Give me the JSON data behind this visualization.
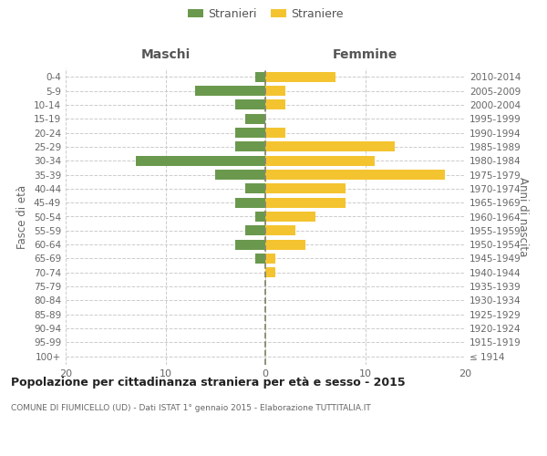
{
  "age_groups": [
    "100+",
    "95-99",
    "90-94",
    "85-89",
    "80-84",
    "75-79",
    "70-74",
    "65-69",
    "60-64",
    "55-59",
    "50-54",
    "45-49",
    "40-44",
    "35-39",
    "30-34",
    "25-29",
    "20-24",
    "15-19",
    "10-14",
    "5-9",
    "0-4"
  ],
  "birth_years": [
    "≤ 1914",
    "1915-1919",
    "1920-1924",
    "1925-1929",
    "1930-1934",
    "1935-1939",
    "1940-1944",
    "1945-1949",
    "1950-1954",
    "1955-1959",
    "1960-1964",
    "1965-1969",
    "1970-1974",
    "1975-1979",
    "1980-1984",
    "1985-1989",
    "1990-1994",
    "1995-1999",
    "2000-2004",
    "2005-2009",
    "2010-2014"
  ],
  "males": [
    0,
    0,
    0,
    0,
    0,
    0,
    0,
    1,
    3,
    2,
    1,
    3,
    2,
    5,
    13,
    3,
    3,
    2,
    3,
    7,
    1
  ],
  "females": [
    0,
    0,
    0,
    0,
    0,
    0,
    1,
    1,
    4,
    3,
    5,
    8,
    8,
    18,
    11,
    13,
    2,
    0,
    2,
    2,
    7
  ],
  "male_color": "#6a994e",
  "female_color": "#f4c430",
  "title": "Popolazione per cittadinanza straniera per età e sesso - 2015",
  "subtitle": "COMUNE DI FIUMICELLO (UD) - Dati ISTAT 1° gennaio 2015 - Elaborazione TUTTITALIA.IT",
  "ylabel_left": "Fasce di età",
  "ylabel_right": "Anni di nascita",
  "label_maschi": "Maschi",
  "label_femmine": "Femmine",
  "legend_male": "Stranieri",
  "legend_female": "Straniere",
  "xlim": 20,
  "background_color": "#ffffff",
  "grid_color": "#cccccc"
}
